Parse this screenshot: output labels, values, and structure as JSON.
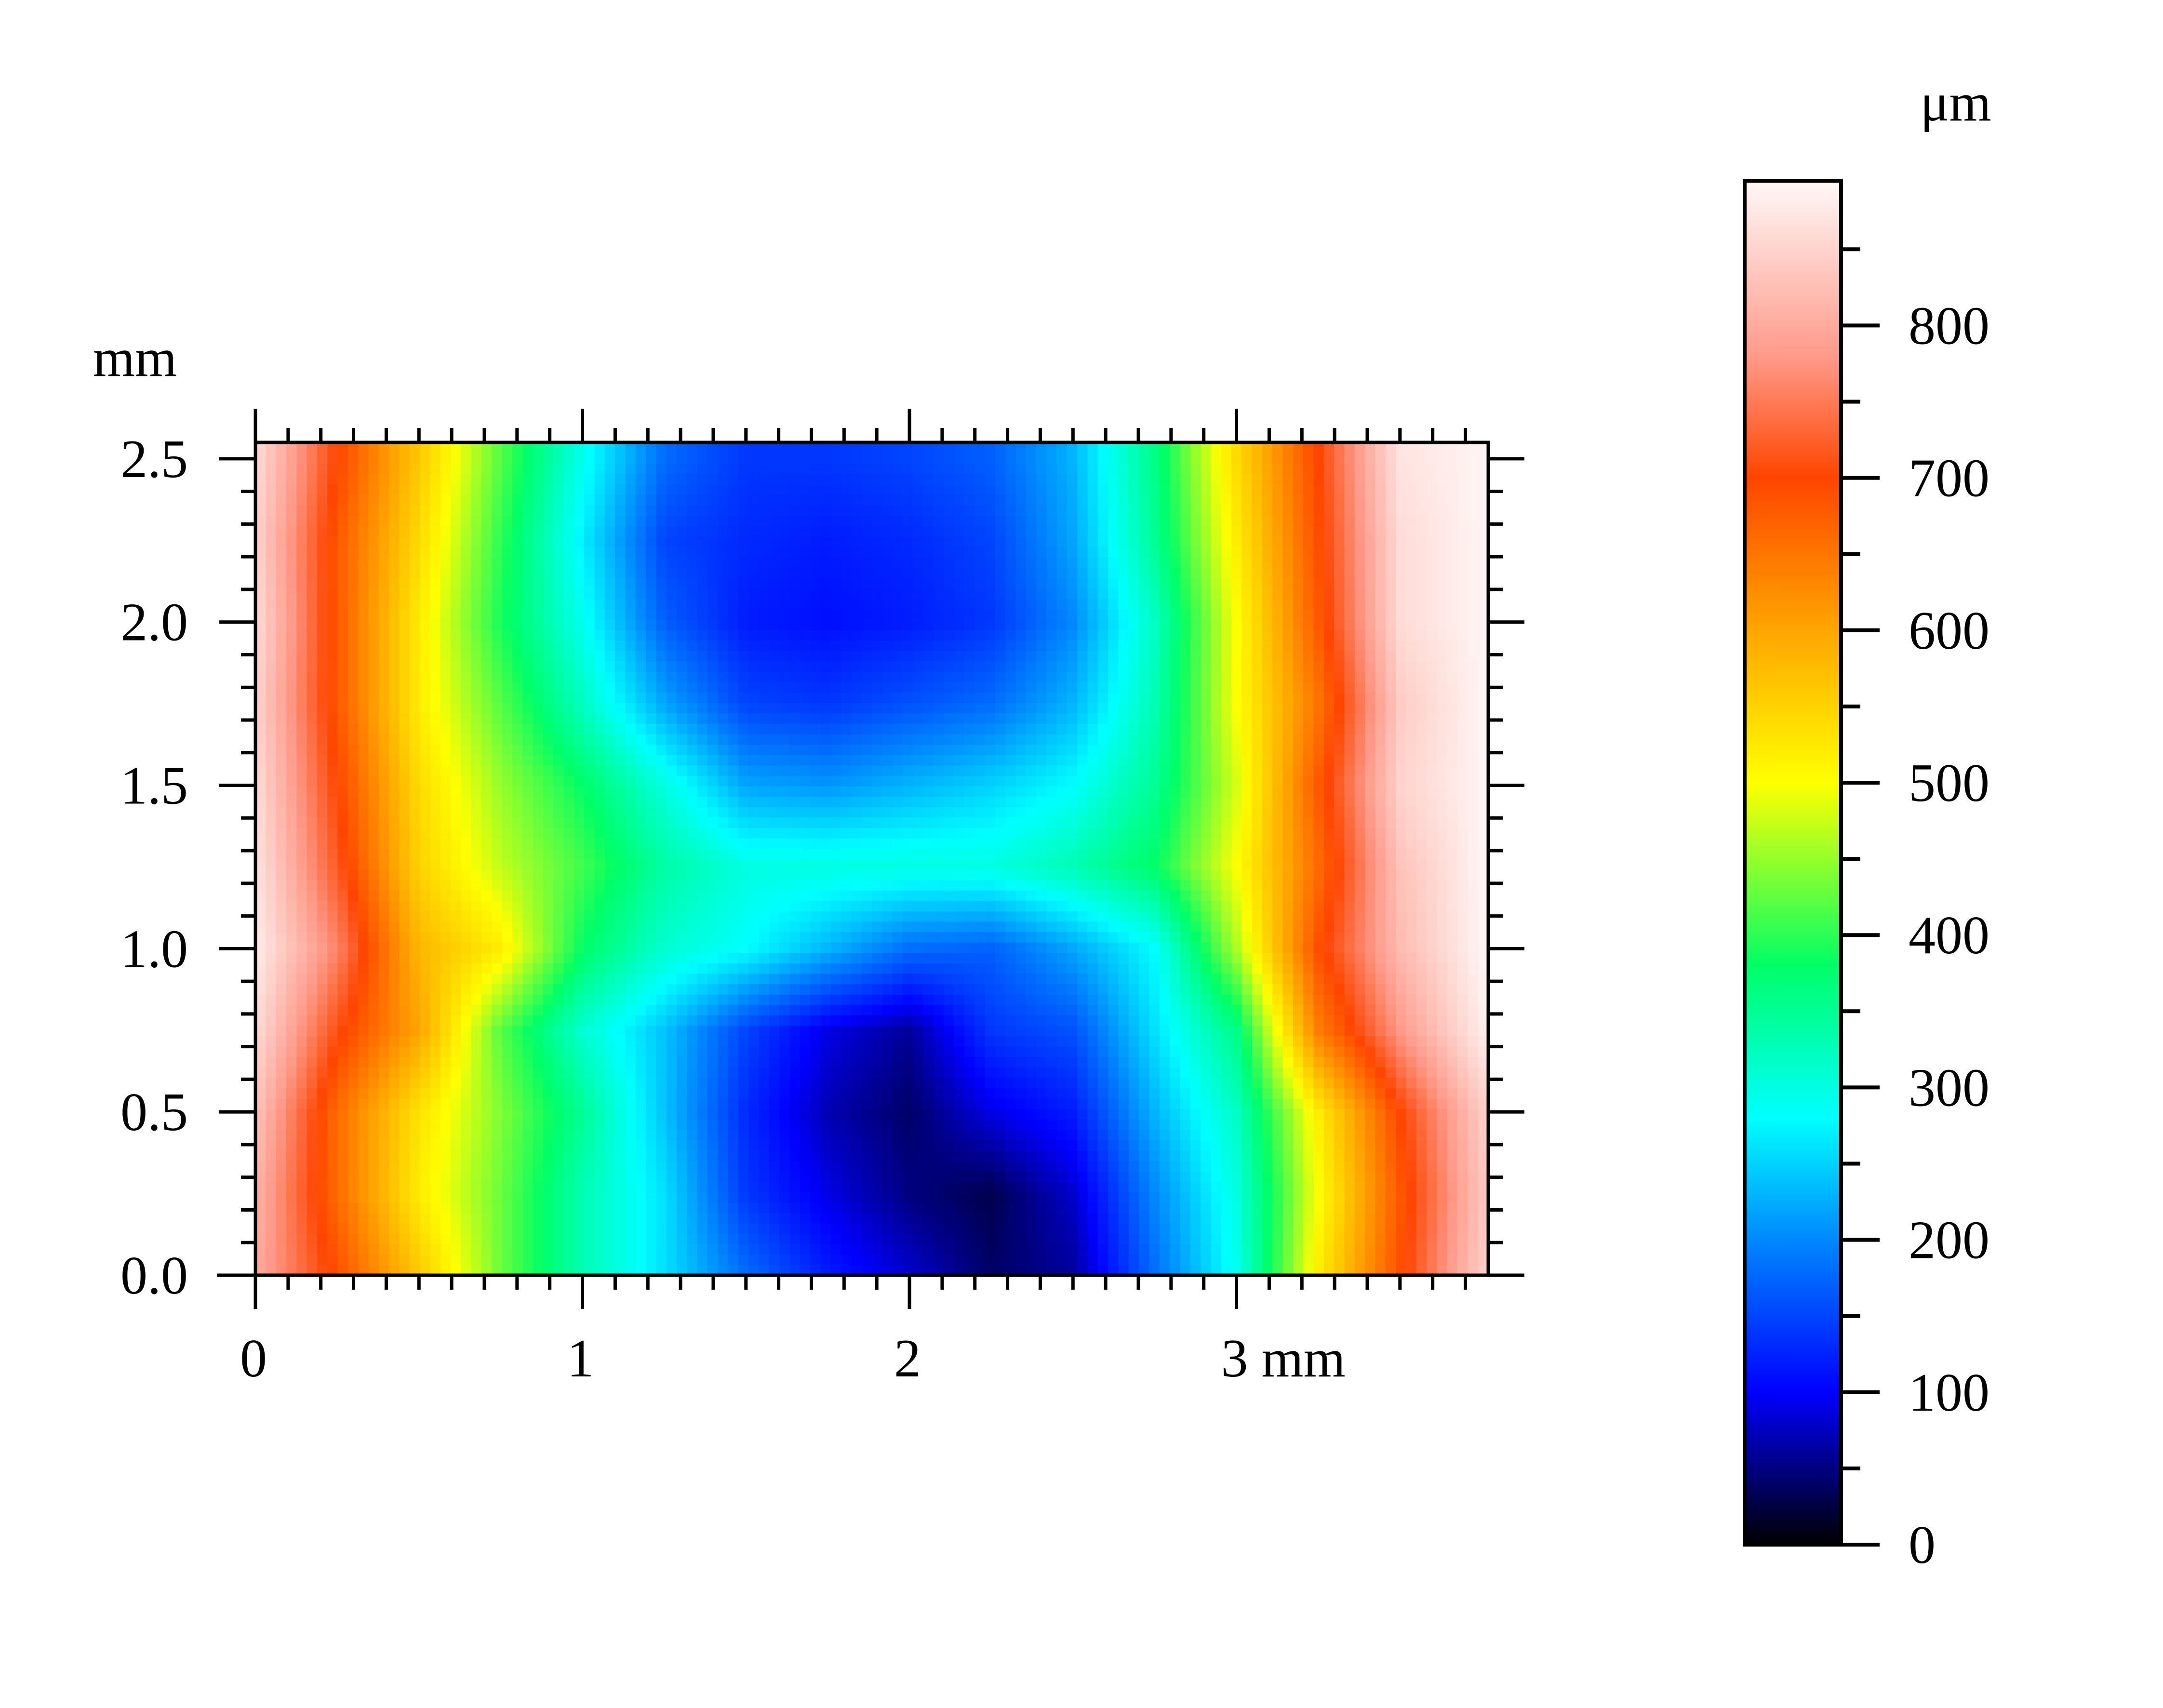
{
  "chart_data": {
    "type": "heatmap",
    "title": "",
    "xlabel": "",
    "ylabel": "",
    "x_unit": "mm",
    "y_unit": "mm",
    "value_unit": "μm",
    "xlim": [
      0,
      3.77
    ],
    "ylim": [
      0,
      2.55
    ],
    "vlim": [
      0,
      895
    ],
    "x_ticks": [
      {
        "value": 0,
        "label": "0"
      },
      {
        "value": 1,
        "label": "1"
      },
      {
        "value": 2,
        "label": "2"
      },
      {
        "value": 3,
        "label": "3 mm"
      }
    ],
    "y_ticks": [
      {
        "value": 0.0,
        "label": "0.0"
      },
      {
        "value": 0.5,
        "label": "0.5"
      },
      {
        "value": 1.0,
        "label": "1.0"
      },
      {
        "value": 1.5,
        "label": "1.5"
      },
      {
        "value": 2.0,
        "label": "2.0"
      },
      {
        "value": 2.5,
        "label": "2.5"
      }
    ],
    "colorbar_ticks": [
      {
        "value": 0,
        "label": "0"
      },
      {
        "value": 100,
        "label": "100"
      },
      {
        "value": 200,
        "label": "200"
      },
      {
        "value": 300,
        "label": "300"
      },
      {
        "value": 400,
        "label": "400"
      },
      {
        "value": 500,
        "label": "500"
      },
      {
        "value": 600,
        "label": "600"
      },
      {
        "value": 700,
        "label": "700"
      },
      {
        "value": 800,
        "label": "800"
      }
    ],
    "colormap": [
      {
        "value": 0,
        "color": "#000000"
      },
      {
        "value": 100,
        "color": "#0000ff"
      },
      {
        "value": 200,
        "color": "#0088ff"
      },
      {
        "value": 280,
        "color": "#00ffff"
      },
      {
        "value": 380,
        "color": "#00ff66"
      },
      {
        "value": 500,
        "color": "#ffff00"
      },
      {
        "value": 600,
        "color": "#ffa500"
      },
      {
        "value": 700,
        "color": "#ff4500"
      },
      {
        "value": 780,
        "color": "#ff9a8a"
      },
      {
        "value": 895,
        "color": "#fff8f8"
      }
    ],
    "grid_x": [
      0,
      0.25,
      0.5,
      0.75,
      1.0,
      1.25,
      1.5,
      1.75,
      2.0,
      2.25,
      2.5,
      2.75,
      3.0,
      3.25,
      3.5,
      3.75
    ],
    "grid_y": [
      0,
      0.25,
      0.5,
      0.75,
      1.0,
      1.25,
      1.5,
      1.75,
      2.0,
      2.25,
      2.5
    ],
    "z": [
      [
        800,
        690,
        560,
        430,
        330,
        260,
        180,
        120,
        80,
        40,
        60,
        180,
        290,
        520,
        690,
        840
      ],
      [
        810,
        660,
        520,
        430,
        330,
        260,
        140,
        90,
        50,
        30,
        80,
        200,
        300,
        500,
        680,
        830
      ],
      [
        830,
        660,
        530,
        440,
        350,
        240,
        130,
        70,
        40,
        90,
        120,
        230,
        320,
        520,
        700,
        840
      ],
      [
        860,
        710,
        600,
        420,
        310,
        240,
        150,
        90,
        60,
        140,
        160,
        260,
        360,
        640,
        780,
        880
      ],
      [
        880,
        760,
        580,
        520,
        380,
        310,
        280,
        230,
        180,
        170,
        220,
        280,
        460,
        690,
        820,
        890
      ],
      [
        870,
        720,
        550,
        470,
        410,
        340,
        300,
        300,
        300,
        300,
        330,
        380,
        500,
        660,
        830,
        890
      ],
      [
        860,
        700,
        540,
        450,
        380,
        300,
        220,
        210,
        230,
        250,
        280,
        350,
        480,
        680,
        850,
        890
      ],
      [
        850,
        680,
        520,
        420,
        320,
        220,
        150,
        140,
        160,
        180,
        230,
        330,
        500,
        650,
        840,
        890
      ],
      [
        860,
        680,
        520,
        390,
        290,
        170,
        120,
        110,
        120,
        140,
        200,
        320,
        500,
        680,
        860,
        890
      ],
      [
        850,
        680,
        540,
        400,
        270,
        150,
        130,
        120,
        130,
        150,
        220,
        350,
        520,
        690,
        860,
        890
      ],
      [
        860,
        700,
        560,
        420,
        290,
        180,
        140,
        140,
        150,
        170,
        230,
        360,
        540,
        700,
        870,
        890
      ]
    ]
  }
}
